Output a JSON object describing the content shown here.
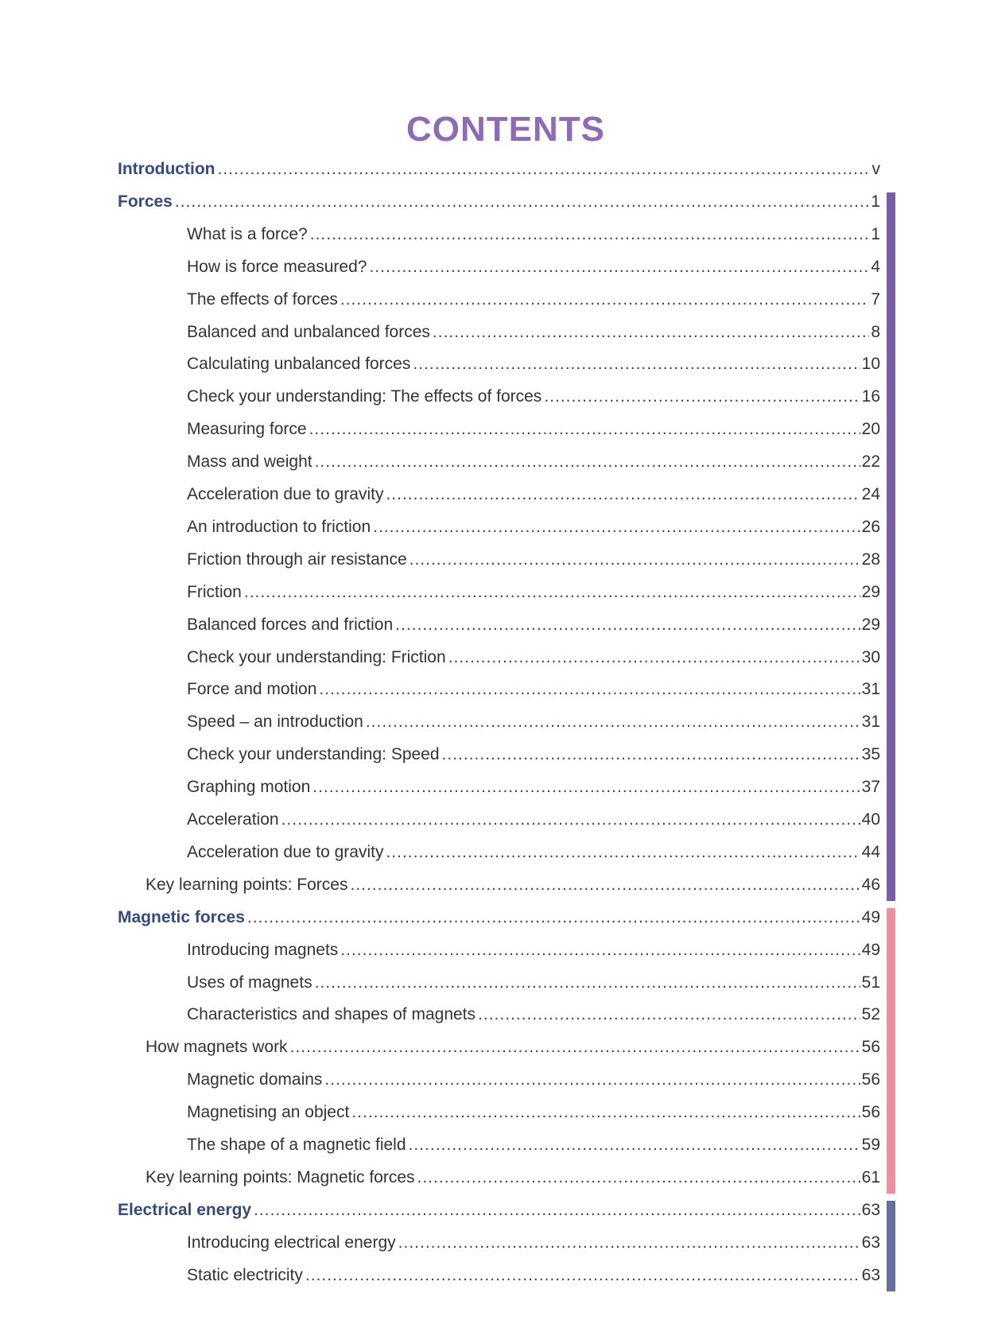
{
  "title": "CONTENTS",
  "entries": [
    {
      "text": "Introduction",
      "page": "v",
      "level": 0
    },
    {
      "text": "Forces",
      "page": "1",
      "level": 0,
      "tab_color": "#7a5da8"
    },
    {
      "text": "What is a force?",
      "page": "1",
      "level": 2
    },
    {
      "text": "How is force measured?",
      "page": "4",
      "level": 2
    },
    {
      "text": "The effects of forces",
      "page": "7",
      "level": 2
    },
    {
      "text": "Balanced and unbalanced forces",
      "page": "8",
      "level": 2
    },
    {
      "text": "Calculating unbalanced forces",
      "page": "10",
      "level": 2
    },
    {
      "text": "Check your understanding: The effects of forces",
      "page": "16",
      "level": 2
    },
    {
      "text": "Measuring force",
      "page": "20",
      "level": 2
    },
    {
      "text": "Mass and weight",
      "page": "22",
      "level": 2
    },
    {
      "text": "Acceleration due to gravity",
      "page": "24",
      "level": 2
    },
    {
      "text": "An introduction to friction",
      "page": "26",
      "level": 2
    },
    {
      "text": "Friction through air resistance",
      "page": "28",
      "level": 2
    },
    {
      "text": "Friction",
      "page": "29",
      "level": 2
    },
    {
      "text": "Balanced forces and friction",
      "page": "29",
      "level": 2
    },
    {
      "text": "Check your understanding: Friction",
      "page": "30",
      "level": 2
    },
    {
      "text": "Force and motion",
      "page": "31",
      "level": 2
    },
    {
      "text": "Speed – an introduction",
      "page": "31",
      "level": 2
    },
    {
      "text": "Check your understanding: Speed",
      "page": "35",
      "level": 2
    },
    {
      "text": "Graphing motion",
      "page": "37",
      "level": 2
    },
    {
      "text": "Acceleration",
      "page": "40",
      "level": 2
    },
    {
      "text": "Acceleration due to gravity",
      "page": "44",
      "level": 2
    },
    {
      "text": "Key learning points: Forces",
      "page": "46",
      "level": 1
    },
    {
      "text": "Magnetic forces",
      "page": "49",
      "level": 0,
      "tab_color": "#f28d9d"
    },
    {
      "text": "Introducing magnets",
      "page": "49",
      "level": 2
    },
    {
      "text": "Uses of magnets",
      "page": "51",
      "level": 2
    },
    {
      "text": "Characteristics and shapes of magnets",
      "page": "52",
      "level": 2
    },
    {
      "text": "How magnets work",
      "page": "56",
      "level": 1
    },
    {
      "text": "Magnetic domains",
      "page": "56",
      "level": 2
    },
    {
      "text": "Magnetising an object",
      "page": "56",
      "level": 2
    },
    {
      "text": "The shape of a magnetic field",
      "page": "59",
      "level": 2
    },
    {
      "text": "Key learning points: Magnetic forces",
      "page": "61",
      "level": 1
    },
    {
      "text": "Electrical energy",
      "page": "63",
      "level": 0,
      "tab_color": "#65709f"
    },
    {
      "text": "Introducing electrical energy",
      "page": "63",
      "level": 2
    },
    {
      "text": "Static electricity",
      "page": "63",
      "level": 2
    }
  ]
}
